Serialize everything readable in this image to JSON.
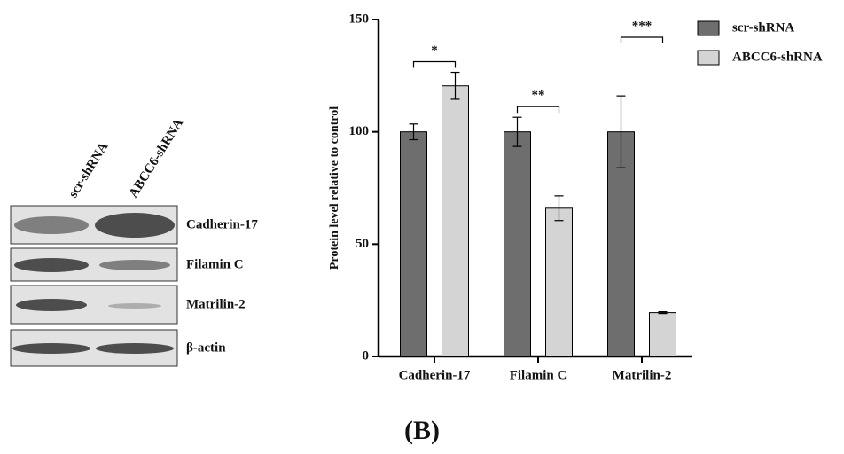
{
  "chart_data": {
    "type": "bar",
    "y_label": "Protein level relative to control",
    "categories": [
      "Cadherin-17",
      "Filamin C",
      "Matrilin-2"
    ],
    "series": [
      {
        "name": "scr-shRNA",
        "color": "#6e6e6e",
        "values": [
          100,
          100,
          100
        ],
        "errors": [
          3.5,
          6.5,
          16
        ]
      },
      {
        "name": "ABCC6-shRNA",
        "color": "#d4d4d4",
        "values": [
          120.5,
          66,
          19.5
        ],
        "errors": [
          6,
          5.5,
          0.4
        ]
      }
    ],
    "significance": [
      "*",
      "**",
      "***"
    ],
    "ylim": [
      0,
      150
    ],
    "yticks": [
      0,
      50,
      100,
      150
    ]
  },
  "blot": {
    "lanes": [
      "scr-shRNA",
      "ABCC6-shRNA"
    ],
    "bands": [
      "Cadherin-17",
      "Filamin C",
      "Matrilin-2",
      "β-actin"
    ]
  },
  "panel_label": "(B)"
}
